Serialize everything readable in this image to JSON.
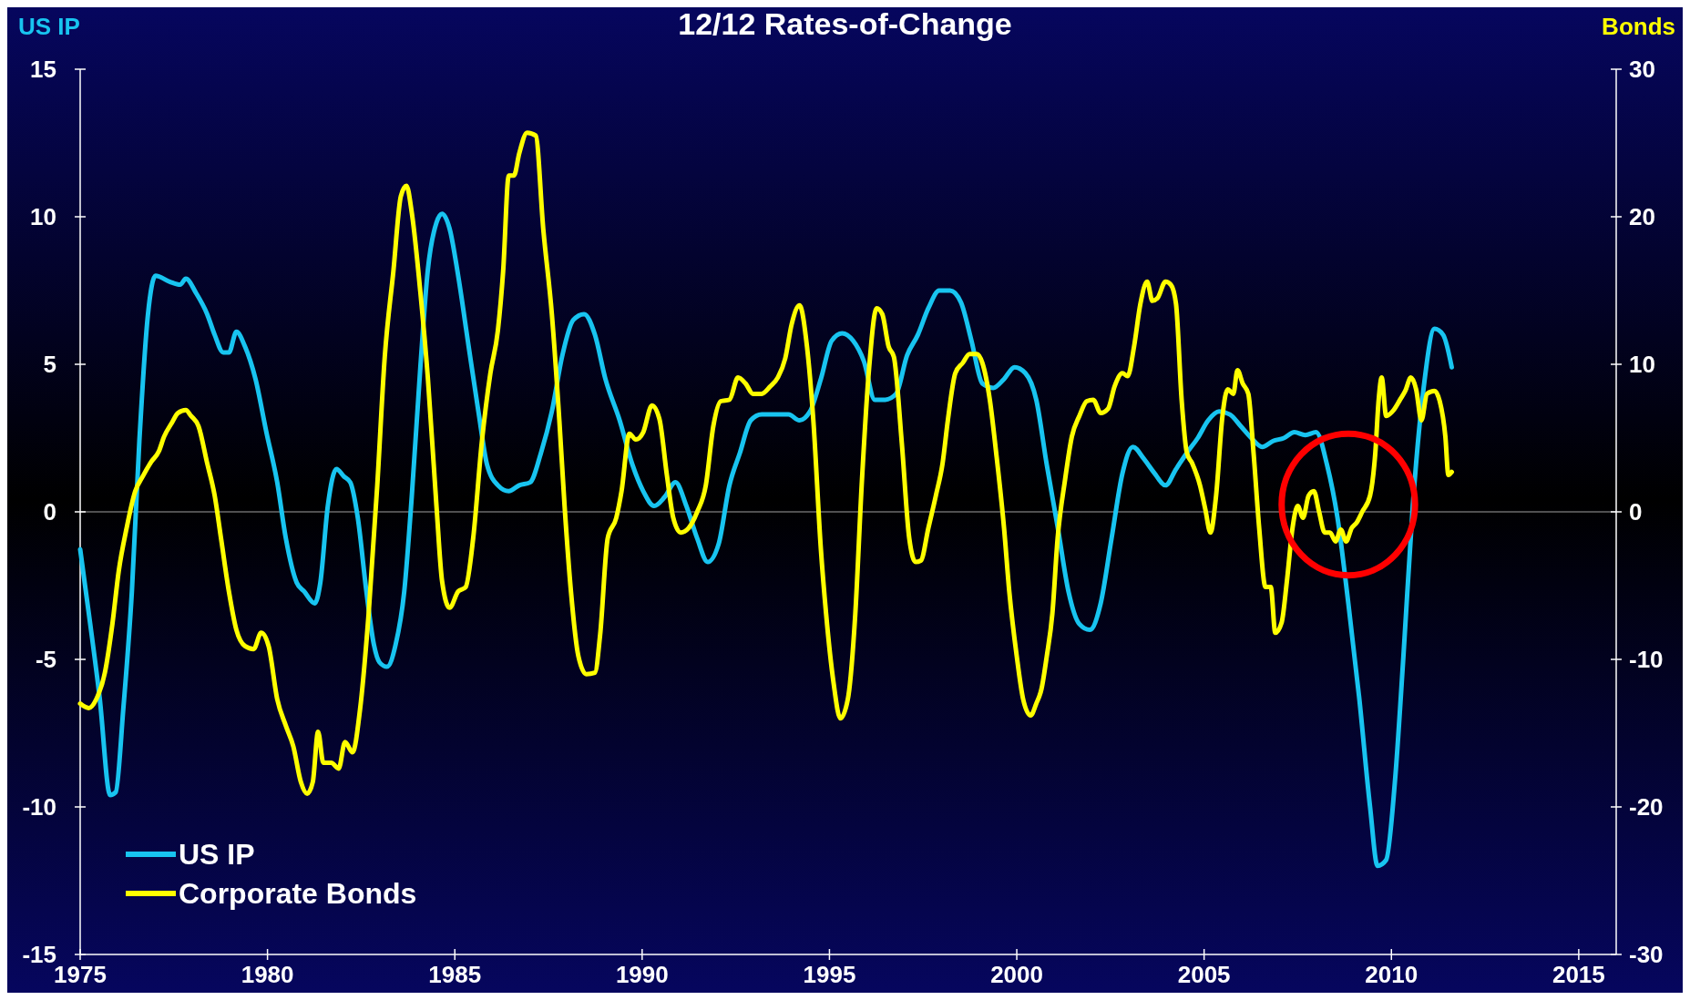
{
  "chart_data": {
    "type": "line",
    "title": "12/12 Rates-of-Change",
    "ylabel": "US IP",
    "y2label": "Bonds",
    "xlim": [
      1975,
      2016
    ],
    "xticks": [
      1975,
      1980,
      1985,
      1990,
      1995,
      2000,
      2005,
      2010,
      2015
    ],
    "ylim": [
      -15,
      15
    ],
    "yticks": [
      -15,
      -10,
      -5,
      0,
      5,
      10,
      15
    ],
    "y2lim": [
      -30,
      30
    ],
    "y2ticks": [
      -30,
      -20,
      -10,
      0,
      10,
      20,
      30
    ],
    "grid": false,
    "legend": "bottom left",
    "marker": "none",
    "line_style": "solid",
    "ref_lines": [
      {
        "axis": "y",
        "value": 0,
        "color": "#a0a0a0"
      }
    ],
    "series": [
      {
        "name": "US IP",
        "color": "#18c4f0",
        "x": [
          1975.0,
          1975.23,
          1975.52,
          1975.8,
          1975.95,
          1976.15,
          1976.38,
          1976.58,
          1976.81,
          1977.01,
          1977.39,
          1977.67,
          1977.82,
          1978.1,
          1978.39,
          1978.59,
          1978.82,
          1978.97,
          1979.17,
          1979.4,
          1979.68,
          1979.97,
          1980.26,
          1980.49,
          1980.78,
          1980.98,
          1981.26,
          1981.41,
          1981.61,
          1981.84,
          1982.04,
          1982.21,
          1982.41,
          1982.64,
          1982.84,
          1982.99,
          1983.19,
          1983.42,
          1983.65,
          1983.85,
          1984.08,
          1984.28,
          1984.51,
          1984.66,
          1984.86,
          1985.09,
          1985.37,
          1985.63,
          1985.86,
          1986.15,
          1986.44,
          1986.72,
          1987.01,
          1987.3,
          1987.59,
          1987.87,
          1988.16,
          1988.45,
          1988.74,
          1989.02,
          1989.4,
          1989.74,
          1990.03,
          1990.32,
          1990.6,
          1990.89,
          1991.18,
          1991.47,
          1991.75,
          1992.04,
          1992.33,
          1992.61,
          1992.9,
          1993.19,
          1993.48,
          1993.91,
          1994.2,
          1994.48,
          1994.77,
          1995.06,
          1995.34,
          1995.63,
          1995.92,
          1996.21,
          1996.49,
          1996.78,
          1997.07,
          1997.36,
          1997.64,
          1997.93,
          1998.22,
          1998.51,
          1998.79,
          1999.08,
          1999.37,
          1999.66,
          1999.94,
          2000.23,
          2000.52,
          2000.8,
          2001.09,
          2001.38,
          2001.67,
          2001.95,
          2002.24,
          2002.53,
          2002.82,
          2003.1,
          2003.39,
          2003.68,
          2003.97,
          2004.25,
          2004.54,
          2004.83,
          2005.11,
          2005.4,
          2005.69,
          2005.98,
          2006.26,
          2006.55,
          2006.84,
          2007.13,
          2007.41,
          2007.7,
          2007.99,
          2008.28,
          2008.56,
          2008.85,
          2009.14,
          2009.43,
          2009.63,
          2009.86,
          2010.09,
          2010.32,
          2010.57,
          2010.86,
          2011.15,
          2011.38,
          2011.61
        ],
        "values": [
          -1.27,
          -3.44,
          -6.3,
          -9.6,
          -9.5,
          -6.7,
          -2.7,
          2.4,
          6.7,
          8.0,
          7.8,
          7.7,
          7.9,
          7.4,
          6.7,
          6.0,
          5.4,
          5.4,
          6.1,
          5.6,
          4.5,
          2.7,
          1.0,
          -0.9,
          -2.4,
          -2.7,
          -3.1,
          -2.4,
          0.2,
          1.45,
          1.2,
          1.0,
          -0.2,
          -2.7,
          -4.5,
          -5.1,
          -5.25,
          -4.5,
          -2.7,
          0.5,
          4.9,
          8.2,
          9.8,
          10.1,
          9.6,
          8.0,
          5.6,
          3.4,
          1.6,
          0.9,
          0.7,
          0.9,
          1.0,
          2.0,
          3.4,
          5.3,
          6.5,
          6.7,
          6.0,
          4.5,
          3.1,
          1.6,
          0.7,
          0.2,
          0.5,
          1.0,
          0.2,
          -0.9,
          -1.7,
          -1.1,
          0.9,
          2.0,
          3.1,
          3.3,
          3.3,
          3.3,
          3.1,
          3.4,
          4.5,
          5.8,
          6.05,
          5.8,
          5.1,
          3.8,
          3.8,
          4.0,
          5.3,
          6.0,
          6.9,
          7.5,
          7.5,
          7.1,
          5.8,
          4.35,
          4.2,
          4.5,
          4.9,
          4.7,
          3.8,
          1.6,
          -0.5,
          -2.7,
          -3.8,
          -4.0,
          -3.1,
          -0.9,
          1.3,
          2.2,
          1.8,
          1.3,
          0.9,
          1.45,
          2.0,
          2.5,
          3.1,
          3.4,
          3.3,
          2.9,
          2.5,
          2.2,
          2.4,
          2.5,
          2.7,
          2.6,
          2.7,
          1.6,
          -0.2,
          -3.1,
          -6.3,
          -10.0,
          -12.0,
          -11.8,
          -9.2,
          -4.9,
          0.2,
          4.2,
          6.2,
          6.0,
          4.9
        ]
      },
      {
        "name": "Corporate Bonds",
        "color": "#ffff00",
        "axis": "y2",
        "x": [
          1975.0,
          1975.23,
          1975.43,
          1975.66,
          1975.86,
          1976.03,
          1976.24,
          1976.47,
          1976.67,
          1976.9,
          1977.1,
          1977.24,
          1977.44,
          1977.61,
          1977.82,
          1977.96,
          1978.16,
          1978.39,
          1978.59,
          1978.76,
          1978.97,
          1979.17,
          1979.4,
          1979.63,
          1979.83,
          1980.03,
          1980.26,
          1980.49,
          1980.69,
          1980.89,
          1981.06,
          1981.21,
          1981.35,
          1981.49,
          1981.7,
          1981.9,
          1982.07,
          1982.27,
          1982.47,
          1982.7,
          1982.93,
          1983.13,
          1983.36,
          1983.56,
          1983.71,
          1983.85,
          1984.08,
          1984.28,
          1984.51,
          1984.66,
          1984.86,
          1985.09,
          1985.29,
          1985.49,
          1985.72,
          1985.95,
          1986.15,
          1986.29,
          1986.44,
          1986.58,
          1986.72,
          1986.93,
          1987.16,
          1987.36,
          1987.59,
          1987.79,
          1987.93,
          1988.1,
          1988.3,
          1988.51,
          1988.74,
          1988.88,
          1989.08,
          1989.31,
          1989.45,
          1989.66,
          1989.83,
          1990.03,
          1990.26,
          1990.46,
          1990.66,
          1990.83,
          1991.03,
          1991.24,
          1991.47,
          1991.7,
          1991.9,
          1992.1,
          1992.33,
          1992.56,
          1992.76,
          1992.96,
          1993.19,
          1993.42,
          1993.62,
          1993.82,
          1993.99,
          1994.2,
          1994.4,
          1994.57,
          1994.77,
          1994.91,
          1995.11,
          1995.29,
          1995.49,
          1995.69,
          1995.86,
          1996.06,
          1996.26,
          1996.41,
          1996.58,
          1996.72,
          1996.93,
          1997.13,
          1997.3,
          1997.44,
          1997.64,
          1997.84,
          1998.02,
          1998.16,
          1998.36,
          1998.56,
          1998.74,
          1998.94,
          1999.08,
          1999.28,
          1999.45,
          1999.66,
          1999.8,
          2000.0,
          2000.17,
          2000.37,
          2000.52,
          2000.66,
          2000.8,
          2000.95,
          2001.09,
          2001.29,
          2001.47,
          2001.67,
          2001.87,
          2002.04,
          2002.24,
          2002.44,
          2002.61,
          2002.82,
          2002.96,
          2003.13,
          2003.3,
          2003.48,
          2003.62,
          2003.76,
          2003.97,
          2004.11,
          2004.25,
          2004.4,
          2004.54,
          2004.68,
          2004.89,
          2005.03,
          2005.17,
          2005.32,
          2005.49,
          2005.63,
          2005.78,
          2005.89,
          2006.03,
          2006.18,
          2006.32,
          2006.47,
          2006.64,
          2006.78,
          2006.9,
          2007.07,
          2007.21,
          2007.36,
          2007.5,
          2007.64,
          2007.79,
          2007.93,
          2008.07,
          2008.22,
          2008.36,
          2008.51,
          2008.65,
          2008.79,
          2008.94,
          2009.08,
          2009.22,
          2009.43,
          2009.57,
          2009.66,
          2009.74,
          2009.86,
          2010.06,
          2010.23,
          2010.37,
          2010.52,
          2010.66,
          2010.8,
          2010.95,
          2011.15,
          2011.29,
          2011.44,
          2011.52,
          2011.61
        ],
        "values": [
          -13.0,
          -13.3,
          -12.7,
          -10.9,
          -7.6,
          -4.0,
          -1.1,
          1.4,
          2.4,
          3.4,
          4.1,
          5.1,
          6.0,
          6.7,
          6.9,
          6.5,
          5.8,
          3.3,
          1.1,
          -1.8,
          -5.4,
          -8.0,
          -9.1,
          -9.3,
          -8.2,
          -9.1,
          -12.7,
          -14.5,
          -15.9,
          -18.3,
          -19.1,
          -18.3,
          -14.9,
          -17.0,
          -17.0,
          -17.4,
          -15.6,
          -16.3,
          -13.4,
          -6.9,
          1.8,
          10.5,
          16.3,
          21.4,
          22.1,
          20.3,
          14.9,
          9.1,
          0.4,
          -4.7,
          -6.5,
          -5.4,
          -5.1,
          -1.8,
          4.7,
          9.4,
          12.3,
          16.3,
          22.8,
          22.8,
          24.3,
          25.7,
          25.5,
          19.2,
          13.4,
          6.2,
          0.4,
          -5.4,
          -9.8,
          -11.0,
          -10.9,
          -8.3,
          -1.8,
          -0.4,
          1.4,
          5.3,
          4.9,
          5.4,
          7.2,
          6.3,
          2.5,
          -0.4,
          -1.4,
          -1.1,
          0.0,
          1.8,
          5.8,
          7.5,
          7.6,
          9.1,
          8.7,
          8.0,
          8.0,
          8.5,
          9.1,
          10.4,
          12.7,
          14.0,
          11.2,
          6.2,
          -2.5,
          -6.9,
          -11.6,
          -14.0,
          -12.7,
          -6.9,
          1.8,
          9.8,
          13.8,
          13.4,
          11.2,
          10.5,
          4.7,
          -1.8,
          -3.4,
          -3.3,
          -1.1,
          1.1,
          3.3,
          6.2,
          9.4,
          10.1,
          10.7,
          10.7,
          10.1,
          7.6,
          4.0,
          -1.1,
          -5.4,
          -9.8,
          -12.7,
          -13.8,
          -13.0,
          -12.0,
          -9.8,
          -6.9,
          -1.8,
          2.2,
          5.1,
          6.5,
          7.5,
          7.6,
          6.7,
          7.0,
          8.5,
          9.4,
          9.2,
          11.2,
          14.1,
          15.6,
          14.3,
          14.5,
          15.6,
          15.4,
          14.1,
          7.6,
          4.0,
          3.3,
          1.8,
          0.2,
          -1.4,
          1.1,
          6.5,
          8.3,
          8.0,
          9.6,
          8.7,
          8.0,
          4.0,
          -1.1,
          -5.1,
          -5.1,
          -8.2,
          -7.5,
          -4.7,
          -1.1,
          0.4,
          -0.4,
          1.1,
          1.4,
          0.0,
          -1.4,
          -1.4,
          -2.0,
          -1.2,
          -2.0,
          -1.1,
          -0.7,
          0.0,
          1.1,
          4.0,
          7.6,
          9.1,
          6.5,
          6.9,
          7.6,
          8.2,
          9.1,
          8.3,
          6.2,
          8.0,
          8.2,
          7.5,
          5.1,
          2.5,
          2.7
        ]
      }
    ]
  }
}
